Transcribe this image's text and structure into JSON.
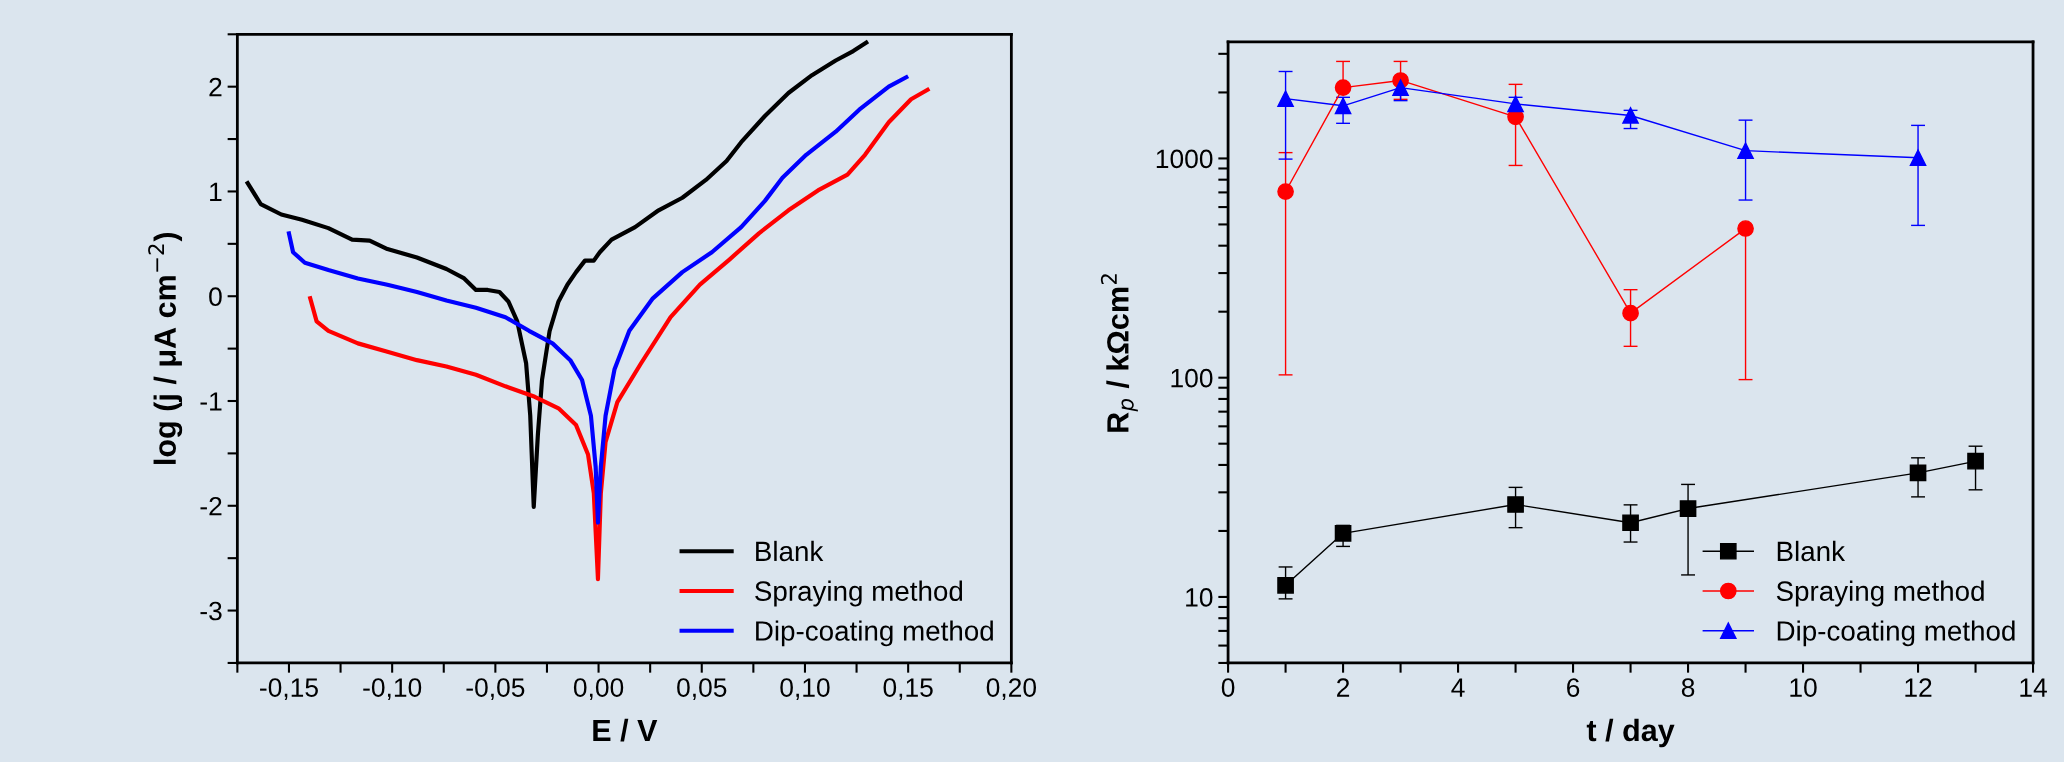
{
  "chart_data": [
    {
      "type": "line",
      "xlabel": "E / V",
      "ylabel": "log (j / μA cm$^{−2}$)",
      "legend": "bottom right",
      "marker": "none",
      "line_style": "solid",
      "grid": false,
      "xlim": [
        -0.175,
        0.2
      ],
      "ylim": [
        -3.5,
        2.5
      ],
      "xticks": [
        {
          "value": -0.175,
          "label": null
        },
        {
          "value": -0.15,
          "label": "-0,15"
        },
        {
          "value": -0.125,
          "label": null
        },
        {
          "value": -0.1,
          "label": "-0,10"
        },
        {
          "value": -0.075,
          "label": null
        },
        {
          "value": -0.05,
          "label": "-0,05"
        },
        {
          "value": -0.025,
          "label": null
        },
        {
          "value": 0,
          "label": "0,00"
        },
        {
          "value": 0.025,
          "label": null
        },
        {
          "value": 0.05,
          "label": "0,05"
        },
        {
          "value": 0.075,
          "label": null
        },
        {
          "value": 0.1,
          "label": "0,10"
        },
        {
          "value": 0.125,
          "label": null
        },
        {
          "value": 0.15,
          "label": "0,15"
        },
        {
          "value": 0.175,
          "label": null
        },
        {
          "value": 0.2,
          "label": "0,20"
        }
      ],
      "yticks": [
        {
          "value": -3.5,
          "label": null
        },
        {
          "value": -3,
          "label": "-3"
        },
        {
          "value": -2.5,
          "label": null
        },
        {
          "value": -2,
          "label": "-2"
        },
        {
          "value": -1.5,
          "label": null
        },
        {
          "value": -1,
          "label": "-1"
        },
        {
          "value": -0.5,
          "label": null
        },
        {
          "value": 0,
          "label": "0"
        },
        {
          "value": 0.5,
          "label": null
        },
        {
          "value": 1,
          "label": "1"
        },
        {
          "value": 1.5,
          "label": null
        },
        {
          "value": 2,
          "label": "2"
        },
        {
          "value": 2.5,
          "label": null
        }
      ],
      "series": [
        {
          "name": "Blank",
          "color": "#000000",
          "x": [
            -0.17,
            -0.1637,
            -0.1537,
            -0.1437,
            -0.1309,
            -0.1194,
            -0.1109,
            -0.1023,
            -0.088,
            -0.0737,
            -0.0651,
            -0.0594,
            -0.0537,
            -0.048,
            -0.0437,
            -0.0394,
            -0.0351,
            -0.0331,
            -0.0314,
            -0.0294,
            -0.0274,
            -0.0237,
            -0.0194,
            -0.0151,
            -0.0109,
            -0.0066,
            -0.0023,
            0.0006,
            0.0063,
            0.0177,
            0.0291,
            0.0406,
            0.052,
            0.062,
            0.0691,
            0.0806,
            0.092,
            0.1034,
            0.1149,
            0.1234,
            0.1297
          ],
          "values": [
            1.08,
            0.88,
            0.78,
            0.73,
            0.65,
            0.54,
            0.53,
            0.45,
            0.37,
            0.26,
            0.17,
            0.06,
            0.06,
            0.04,
            -0.05,
            -0.24,
            -0.64,
            -1.14,
            -2.01,
            -1.32,
            -0.8,
            -0.33,
            -0.05,
            0.11,
            0.23,
            0.34,
            0.34,
            0.42,
            0.54,
            0.66,
            0.82,
            0.94,
            1.11,
            1.29,
            1.47,
            1.72,
            1.94,
            2.11,
            2.25,
            2.34,
            2.42
          ]
        },
        {
          "name": "Spraying method",
          "color": "#ff0000",
          "x": [
            -0.1397,
            -0.1366,
            -0.1309,
            -0.1166,
            -0.1023,
            -0.088,
            -0.0737,
            -0.0594,
            -0.0451,
            -0.0309,
            -0.0194,
            -0.0109,
            -0.0051,
            -0.0023,
            -0.0003,
            0.0011,
            0.0034,
            0.0091,
            0.0206,
            0.0349,
            0.0491,
            0.0634,
            0.0777,
            0.092,
            0.1063,
            0.1206,
            0.1291,
            0.1406,
            0.1514,
            0.1594
          ],
          "values": [
            -0.02,
            -0.24,
            -0.33,
            -0.45,
            -0.53,
            -0.61,
            -0.67,
            -0.75,
            -0.86,
            -0.96,
            -1.07,
            -1.23,
            -1.51,
            -1.88,
            -2.7,
            -1.88,
            -1.39,
            -1.01,
            -0.64,
            -0.2,
            0.11,
            0.35,
            0.6,
            0.82,
            1.01,
            1.16,
            1.35,
            1.66,
            1.88,
            1.97
          ]
        },
        {
          "name": "Dip-coating method",
          "color": "#0000ff",
          "x": [
            -0.15,
            -0.148,
            -0.1423,
            -0.1309,
            -0.1166,
            -0.1023,
            -0.088,
            -0.0737,
            -0.0594,
            -0.0451,
            -0.0337,
            -0.0223,
            -0.0137,
            -0.008,
            -0.0037,
            -0.0014,
            -0.0003,
            0.0011,
            0.0034,
            0.0077,
            0.0149,
            0.0263,
            0.0406,
            0.0549,
            0.0691,
            0.0806,
            0.0891,
            0.1006,
            0.1149,
            0.1263,
            0.1406,
            0.1491
          ],
          "values": [
            0.6,
            0.42,
            0.32,
            0.25,
            0.17,
            0.11,
            0.04,
            -0.04,
            -0.11,
            -0.2,
            -0.33,
            -0.45,
            -0.61,
            -0.8,
            -1.14,
            -1.63,
            -2.16,
            -1.63,
            -1.14,
            -0.7,
            -0.33,
            -0.02,
            0.23,
            0.42,
            0.66,
            0.91,
            1.13,
            1.35,
            1.57,
            1.78,
            2.0,
            2.09
          ]
        }
      ]
    },
    {
      "type": "line",
      "xlabel": "t / day",
      "ylabel": "R$_{p}$ / kΩcm$^{2}$",
      "legend": "bottom right",
      "line_style": "solid",
      "grid": false,
      "log": "y",
      "xlim": [
        0,
        14
      ],
      "ylim": [
        5,
        3400
      ],
      "xticks": [
        0,
        {
          "value": 1,
          "label": null
        },
        2,
        {
          "value": 3,
          "label": null
        },
        4,
        {
          "value": 5,
          "label": null
        },
        6,
        {
          "value": 7,
          "label": null
        },
        8,
        {
          "value": 9,
          "label": null
        },
        10,
        {
          "value": 11,
          "label": null
        },
        12,
        {
          "value": 13,
          "label": null
        },
        14
      ],
      "yticks": [
        {
          "value": 5,
          "label": null
        },
        {
          "value": 6,
          "label": null
        },
        {
          "value": 7,
          "label": null
        },
        {
          "value": 8,
          "label": null
        },
        {
          "value": 9,
          "label": null
        },
        10,
        {
          "value": 20,
          "label": null
        },
        {
          "value": 30,
          "label": null
        },
        {
          "value": 40,
          "label": null
        },
        {
          "value": 50,
          "label": null
        },
        {
          "value": 60,
          "label": null
        },
        {
          "value": 70,
          "label": null
        },
        {
          "value": 80,
          "label": null
        },
        {
          "value": 90,
          "label": null
        },
        100,
        {
          "value": 200,
          "label": null
        },
        {
          "value": 300,
          "label": null
        },
        {
          "value": 400,
          "label": null
        },
        {
          "value": 500,
          "label": null
        },
        {
          "value": 600,
          "label": null
        },
        {
          "value": 700,
          "label": null
        },
        {
          "value": 800,
          "label": null
        },
        {
          "value": 900,
          "label": null
        },
        1000,
        {
          "value": 2000,
          "label": null
        },
        {
          "value": 3000,
          "label": null
        }
      ],
      "series": [
        {
          "name": "Blank",
          "color": "#000000",
          "marker": "square",
          "x": [
            1,
            2,
            5,
            7,
            8,
            12,
            13
          ],
          "values": [
            11.3,
            19.5,
            26.4,
            21.8,
            25.3,
            36.8,
            41.6
          ],
          "errors": [
            [
              9.8,
              13.7
            ],
            [
              17.0,
              21.2
            ],
            [
              20.7,
              31.6
            ],
            [
              17.8,
              26.3
            ],
            [
              12.6,
              32.6
            ],
            [
              28.6,
              43.1
            ],
            [
              30.8,
              48.7
            ]
          ]
        },
        {
          "name": "Spraying method",
          "color": "#ff0000",
          "marker": "circle",
          "x": [
            1,
            2,
            3,
            5,
            7,
            9
          ],
          "values": [
            706,
            2104,
            2268,
            1548,
            197,
            479
          ],
          "errors": [
            [
              103,
              1063
            ],
            [
              2104,
              2770
            ],
            [
              1860,
              2770
            ],
            [
              929,
              2177
            ],
            [
              139,
              252
            ],
            [
              98,
              479
            ]
          ]
        },
        {
          "name": "Dip-coating method",
          "color": "#0000ff",
          "marker": "triangle",
          "x": [
            1,
            2,
            3,
            5,
            7,
            9,
            12
          ],
          "values": [
            1874,
            1738,
            2104,
            1773,
            1570,
            1085,
            1007
          ],
          "errors": [
            [
              993,
              2492
            ],
            [
              1446,
              1900
            ],
            [
              1835,
              2280
            ],
            [
              1650,
              1900
            ],
            [
              1369,
              1657
            ],
            [
              646,
              1495
            ],
            [
              495,
              1415
            ]
          ]
        }
      ]
    }
  ]
}
